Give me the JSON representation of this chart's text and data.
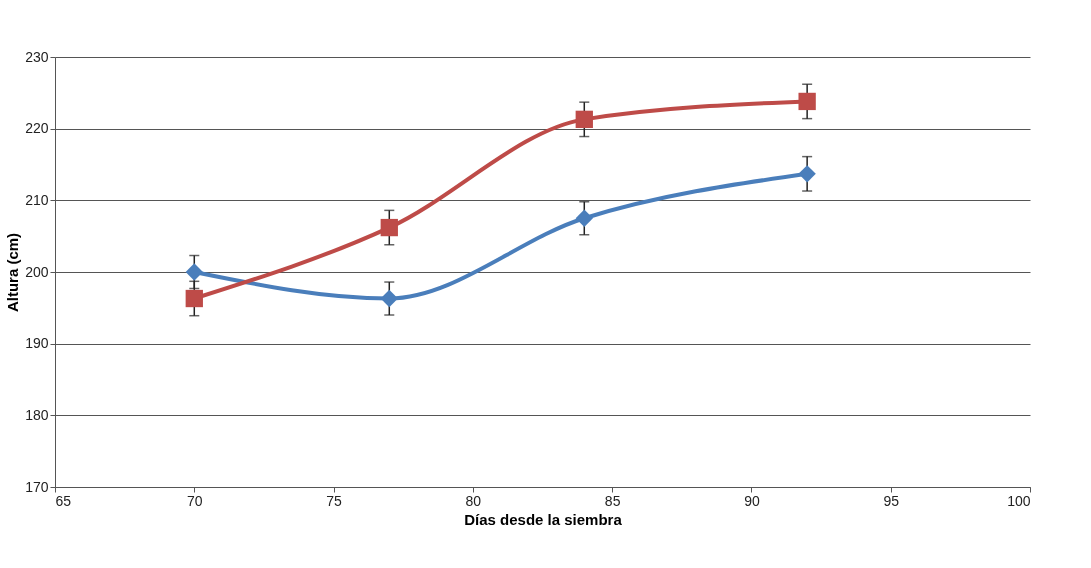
{
  "chart_data": {
    "type": "line",
    "xlabel": "Días desde la siembra",
    "ylabel": "Altura (cm)",
    "x": [
      70,
      77,
      84,
      92
    ],
    "series": [
      {
        "color": "#4a7ebb",
        "marker": "diamond",
        "values": [
          200,
          196.3,
          207.5,
          213.7
        ],
        "errors": [
          2.3,
          2.3,
          2.3,
          2.4
        ]
      },
      {
        "color": "#be4b48",
        "marker": "square",
        "values": [
          196.3,
          206.2,
          221.3,
          223.8
        ],
        "errors": [
          2.4,
          2.4,
          2.4,
          2.4
        ]
      }
    ],
    "xlim": [
      65,
      100
    ],
    "xticks": [
      65,
      70,
      75,
      80,
      85,
      90,
      95,
      100
    ],
    "ylim": [
      170,
      230
    ],
    "yticks": [
      170,
      180,
      190,
      200,
      210,
      220,
      230
    ],
    "grid": "y",
    "legend": false,
    "line_style": "solid"
  }
}
